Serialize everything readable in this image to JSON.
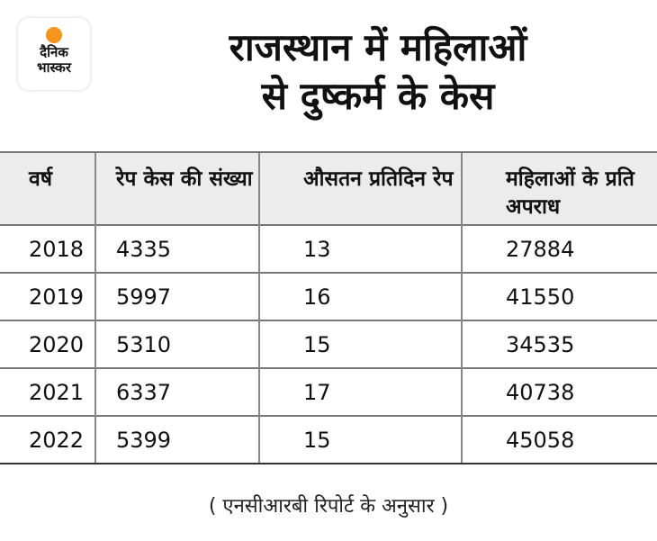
{
  "logo": {
    "line1": "दैनिक",
    "line2": "भास्कर",
    "accent": "#f7941d"
  },
  "title": {
    "line1": "राजस्थान में महिलाओं",
    "line2": "से दुष्कर्म के केस"
  },
  "table": {
    "headers": [
      "वर्ष",
      "रेप केस की संख्या",
      "औसतन प्रतिदिन रेप",
      "महिलाओं के प्रति अपराध"
    ],
    "rows": [
      [
        "2018",
        "4335",
        "13",
        "27884"
      ],
      [
        "2019",
        "5997",
        "16",
        "41550"
      ],
      [
        "2020",
        "5310",
        "15",
        "34535"
      ],
      [
        "2021",
        "6337",
        "17",
        "40738"
      ],
      [
        "2022",
        "5399",
        "15",
        "45058"
      ]
    ]
  },
  "source": "( एनसीआरबी रिपोर्ट के अनुसार )"
}
